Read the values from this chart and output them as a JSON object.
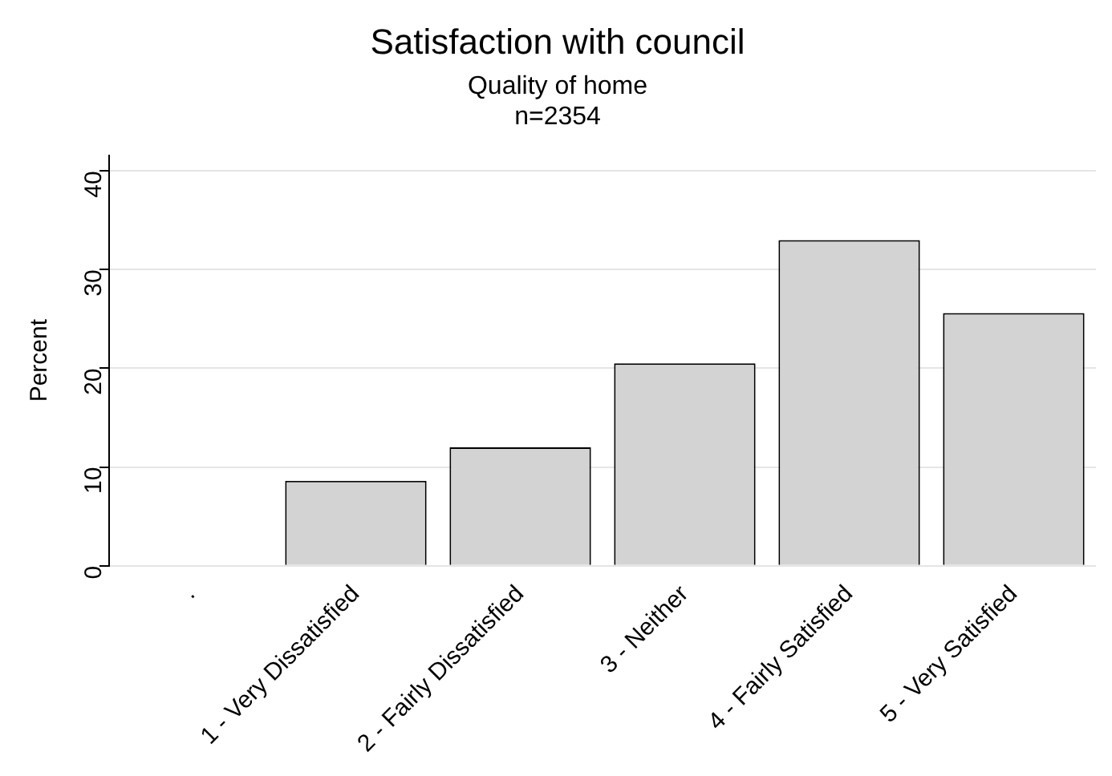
{
  "chart_data": {
    "type": "bar",
    "title": "Satisfaction with council",
    "subtitle": "Quality of home\nn=2354",
    "ylabel": "Percent",
    "categories": [
      ".",
      "1 - Very Dissatisfied",
      "2 - Fairly Dissatisfied",
      "3 - Neither",
      "4 - Fairly Satisfied",
      "5 - Very Satisfied"
    ],
    "values": [
      null,
      8.6,
      12.0,
      20.5,
      33.0,
      25.6
    ],
    "color": "#d3d3d3",
    "ylim": [
      0,
      41.6
    ],
    "yticks": [
      0,
      10,
      20,
      30,
      40
    ],
    "grid": "y"
  }
}
